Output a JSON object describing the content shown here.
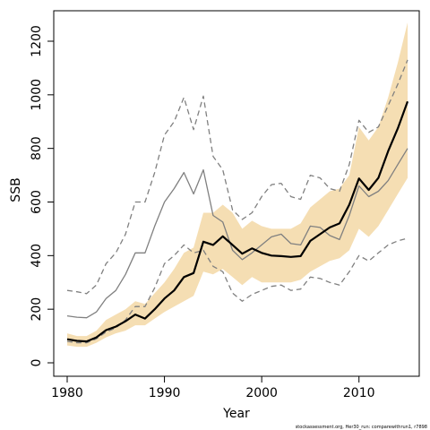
{
  "chart_data": {
    "type": "line",
    "title": "",
    "xlabel": "Year",
    "ylabel": "SSB",
    "xlim": [
      1980,
      2015
    ],
    "ylim": [
      0,
      1200
    ],
    "x_ticks": [
      "1980",
      "1990",
      "2000",
      "2010"
    ],
    "y_ticks": [
      "0",
      "200",
      "400",
      "600",
      "800",
      "1000",
      "1200"
    ],
    "years": [
      1980,
      1981,
      1982,
      1983,
      1984,
      1985,
      1986,
      1987,
      1988,
      1989,
      1990,
      1991,
      1992,
      1993,
      1994,
      1995,
      1996,
      1997,
      1998,
      1999,
      2000,
      2001,
      2002,
      2003,
      2004,
      2005,
      2006,
      2007,
      2008,
      2009,
      2010,
      2011,
      2012,
      2013,
      2014,
      2015
    ],
    "band_color": "#f5deb3",
    "series": [
      {
        "role": "band-upper",
        "color": "#f5deb3",
        "values": [
          110,
          100,
          100,
          120,
          160,
          180,
          200,
          230,
          220,
          260,
          300,
          350,
          410,
          430,
          560,
          560,
          590,
          560,
          500,
          530,
          510,
          500,
          500,
          500,
          520,
          580,
          610,
          640,
          650,
          700,
          880,
          830,
          880,
          990,
          1120,
          1270
        ]
      },
      {
        "role": "band-lower",
        "color": "#f5deb3",
        "values": [
          65,
          60,
          60,
          75,
          95,
          110,
          120,
          140,
          140,
          165,
          190,
          210,
          230,
          250,
          340,
          330,
          350,
          320,
          290,
          320,
          300,
          300,
          300,
          300,
          310,
          340,
          360,
          380,
          390,
          420,
          500,
          470,
          510,
          570,
          630,
          690
        ]
      },
      {
        "role": "central",
        "color": "#000000",
        "values": [
          88,
          82,
          80,
          95,
          122,
          135,
          155,
          180,
          165,
          200,
          240,
          270,
          320,
          335,
          452,
          440,
          472,
          440,
          407,
          427,
          410,
          400,
          398,
          395,
          398,
          455,
          480,
          505,
          520,
          590,
          688,
          645,
          690,
          790,
          875,
          975
        ]
      },
      {
        "role": "comparison",
        "color": "#808080",
        "values": [
          175,
          170,
          168,
          190,
          240,
          270,
          330,
          410,
          410,
          510,
          600,
          650,
          710,
          630,
          720,
          550,
          525,
          420,
          385,
          410,
          440,
          470,
          480,
          445,
          440,
          510,
          505,
          475,
          460,
          550,
          660,
          620,
          640,
          680,
          740,
          800
        ]
      },
      {
        "role": "comparison-upper",
        "color": "#808080",
        "dash": "dashed",
        "values": [
          270,
          265,
          258,
          290,
          370,
          410,
          480,
          600,
          600,
          710,
          850,
          900,
          990,
          870,
          995,
          770,
          720,
          570,
          535,
          560,
          620,
          665,
          670,
          620,
          610,
          700,
          690,
          650,
          640,
          740,
          905,
          860,
          880,
          960,
          1040,
          1130
        ]
      },
      {
        "role": "comparison-lower",
        "color": "#808080",
        "dash": "dashed",
        "values": [
          80,
          75,
          75,
          90,
          115,
          130,
          160,
          210,
          210,
          280,
          370,
          400,
          440,
          410,
          420,
          360,
          340,
          260,
          230,
          255,
          270,
          285,
          290,
          270,
          275,
          320,
          315,
          300,
          290,
          340,
          400,
          380,
          410,
          440,
          455,
          465
        ]
      }
    ]
  },
  "footnote": "stockassessment.org, Her30_run: comparewithrun1, r7898"
}
